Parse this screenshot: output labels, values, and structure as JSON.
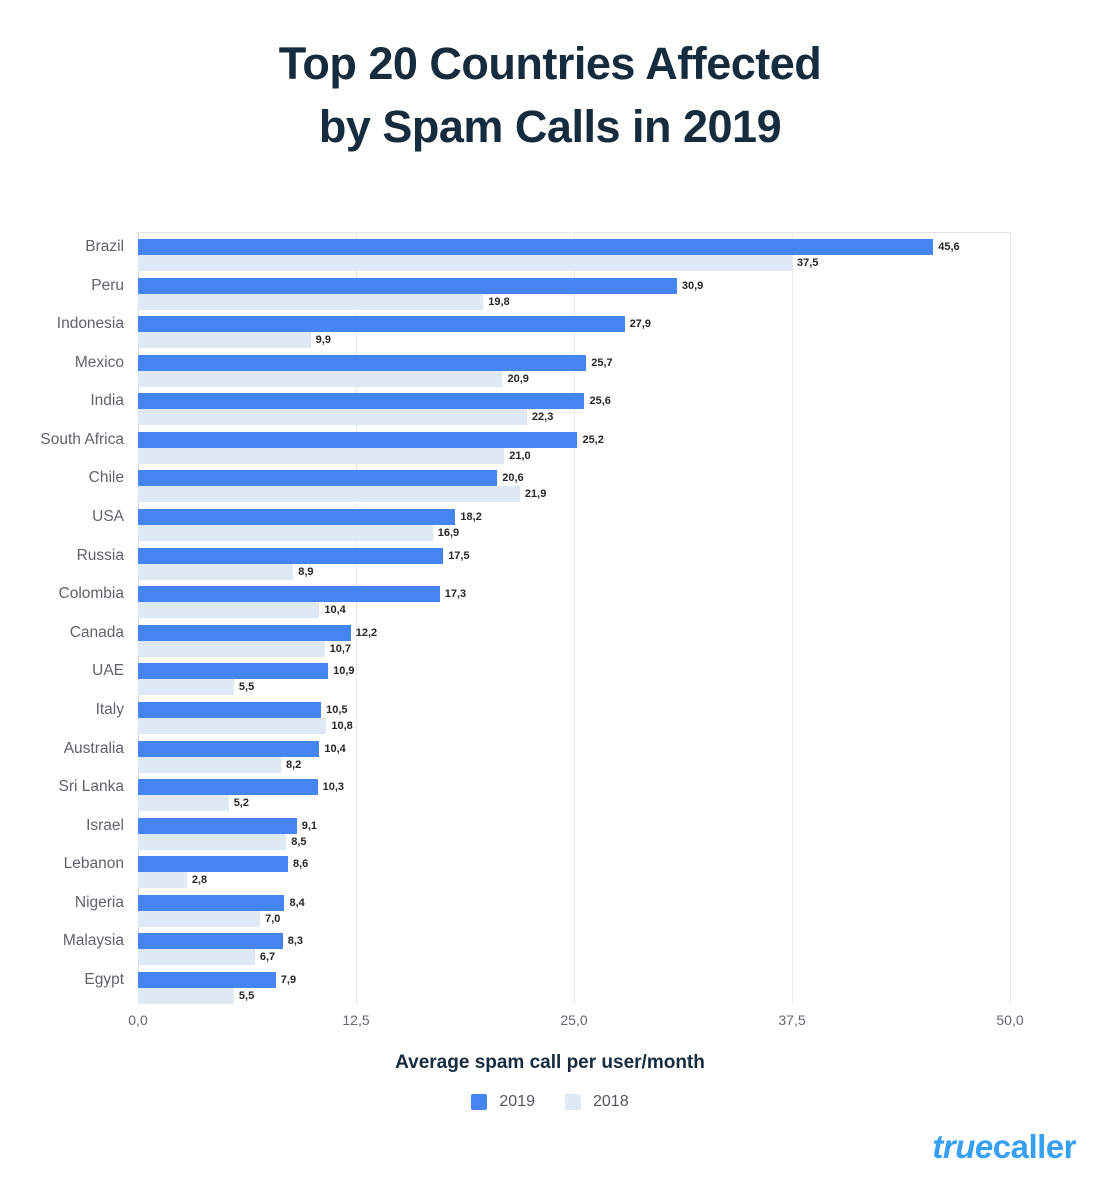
{
  "title": {
    "line1": "Top 20 Countries Affected",
    "line2": "by Spam Calls in 2019"
  },
  "chart_data": {
    "type": "bar",
    "orientation": "horizontal",
    "title": "Top 20 Countries Affected by Spam Calls in 2019",
    "xlabel": "Average spam call per user/month",
    "xlim": [
      0,
      50
    ],
    "x_tick_values": [
      0,
      12.5,
      25,
      37.5,
      50
    ],
    "x_tick_labels": [
      "0,0",
      "12,5",
      "25,0",
      "37,5",
      "50,0"
    ],
    "grid": true,
    "legend_position": "bottom",
    "categories": [
      "Brazil",
      "Peru",
      "Indonesia",
      "Mexico",
      "India",
      "South Africa",
      "Chile",
      "USA",
      "Russia",
      "Colombia",
      "Canada",
      "UAE",
      "Italy",
      "Australia",
      "Sri Lanka",
      "Israel",
      "Lebanon",
      "Nigeria",
      "Malaysia",
      "Egypt"
    ],
    "series": [
      {
        "name": "2019",
        "color": "#4484F3",
        "values": [
          45.6,
          30.9,
          27.9,
          25.7,
          25.6,
          25.2,
          20.6,
          18.2,
          17.5,
          17.3,
          12.2,
          10.9,
          10.5,
          10.4,
          10.3,
          9.1,
          8.6,
          8.4,
          8.3,
          7.9
        ],
        "labels": [
          "45,6",
          "30,9",
          "27,9",
          "25,7",
          "25,6",
          "25,2",
          "20,6",
          "18,2",
          "17,5",
          "17,3",
          "12,2",
          "10,9",
          "10,5",
          "10,4",
          "10,3",
          "9,1",
          "8,6",
          "8,4",
          "8,3",
          "7,9"
        ]
      },
      {
        "name": "2018",
        "color": "#DFE9F6",
        "values": [
          37.5,
          19.8,
          9.9,
          20.9,
          22.3,
          21.0,
          21.9,
          16.9,
          8.9,
          10.4,
          10.7,
          5.5,
          10.8,
          8.2,
          5.2,
          8.5,
          2.8,
          7.0,
          6.7,
          5.5
        ],
        "labels": [
          "37,5",
          "19,8",
          "9,9",
          "20,9",
          "22,3",
          "21,0",
          "21,9",
          "16,9",
          "8,9",
          "10,4",
          "10,7",
          "5,5",
          "10,8",
          "8,2",
          "5,2",
          "8,5",
          "2,8",
          "7,0",
          "6,7",
          "5,5"
        ]
      }
    ]
  },
  "legend": {
    "items": [
      {
        "label": "2019",
        "color": "#4484F3"
      },
      {
        "label": "2018",
        "color": "#DFE9F6"
      }
    ]
  },
  "footer": {
    "logo_true": "true",
    "logo_caller": "caller",
    "logo_color": "#38A0F4"
  }
}
